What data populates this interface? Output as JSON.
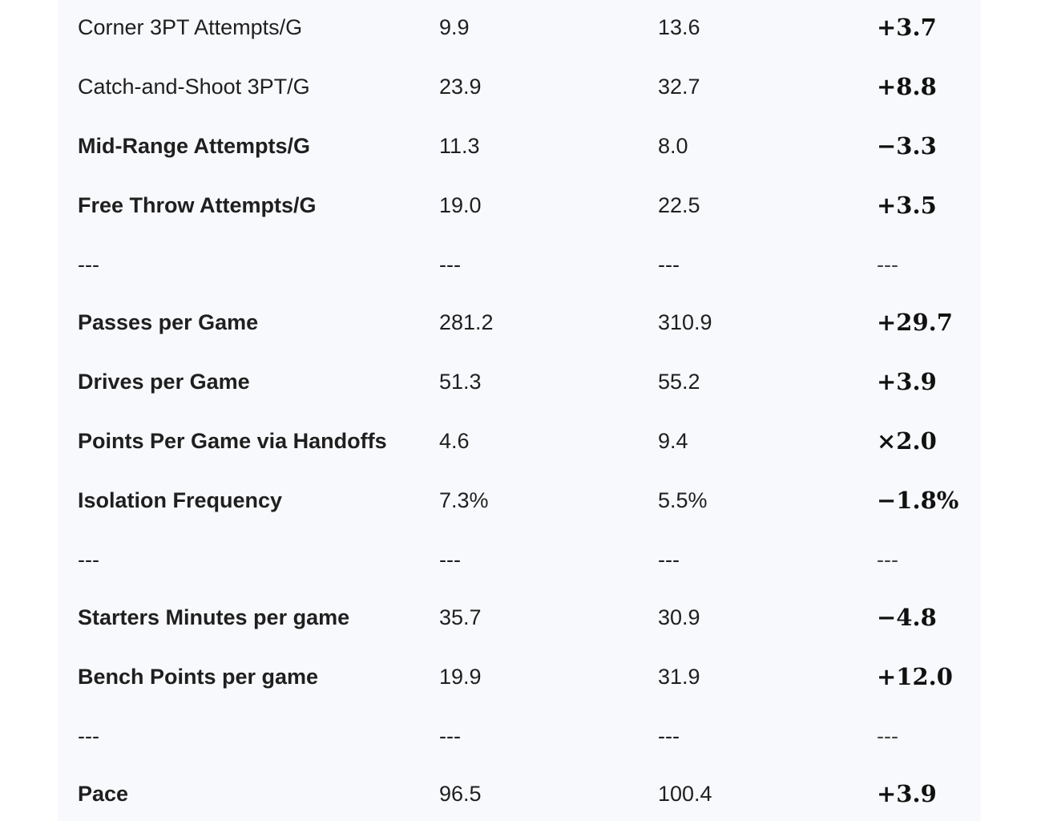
{
  "table": {
    "rows": [
      {
        "metric": "Corner 3PT Attempts/G",
        "bold": false,
        "before": "9.9",
        "after": "13.6",
        "change": "+3.7"
      },
      {
        "metric": "Catch-and-Shoot 3PT/G",
        "bold": false,
        "before": "23.9",
        "after": "32.7",
        "change": "+8.8"
      },
      {
        "metric": "Mid-Range Attempts/G",
        "bold": true,
        "before": "11.3",
        "after": "8.0",
        "change": "−3.3"
      },
      {
        "metric": "Free Throw Attempts/G",
        "bold": true,
        "before": "19.0",
        "after": "22.5",
        "change": "+3.5"
      },
      {
        "separator": true,
        "metric": "---",
        "before": "---",
        "after": "---",
        "change": "---"
      },
      {
        "metric": "Passes per Game",
        "bold": true,
        "before": "281.2",
        "after": "310.9",
        "change": "+29.7"
      },
      {
        "metric": "Drives per Game",
        "bold": true,
        "before": "51.3",
        "after": "55.2",
        "change": "+3.9"
      },
      {
        "metric": "Points Per Game via Handoffs",
        "bold": true,
        "before": "4.6",
        "after": "9.4",
        "change": "×2.0"
      },
      {
        "metric": "Isolation Frequency",
        "bold": true,
        "before": "7.3%",
        "after": "5.5%",
        "change": "−1.8%"
      },
      {
        "separator": true,
        "metric": "---",
        "before": "---",
        "after": "---",
        "change": "---"
      },
      {
        "metric": "Starters Minutes per game",
        "bold": true,
        "before": "35.7",
        "after": "30.9",
        "change": "−4.8"
      },
      {
        "metric": "Bench Points per game",
        "bold": true,
        "before": "19.9",
        "after": "31.9",
        "change": "+12.0"
      },
      {
        "separator": true,
        "metric": "---",
        "before": "---",
        "after": "---",
        "change": "---"
      },
      {
        "metric": "Pace",
        "bold": true,
        "before": "96.5",
        "after": "100.4",
        "change": "+3.9"
      }
    ]
  }
}
